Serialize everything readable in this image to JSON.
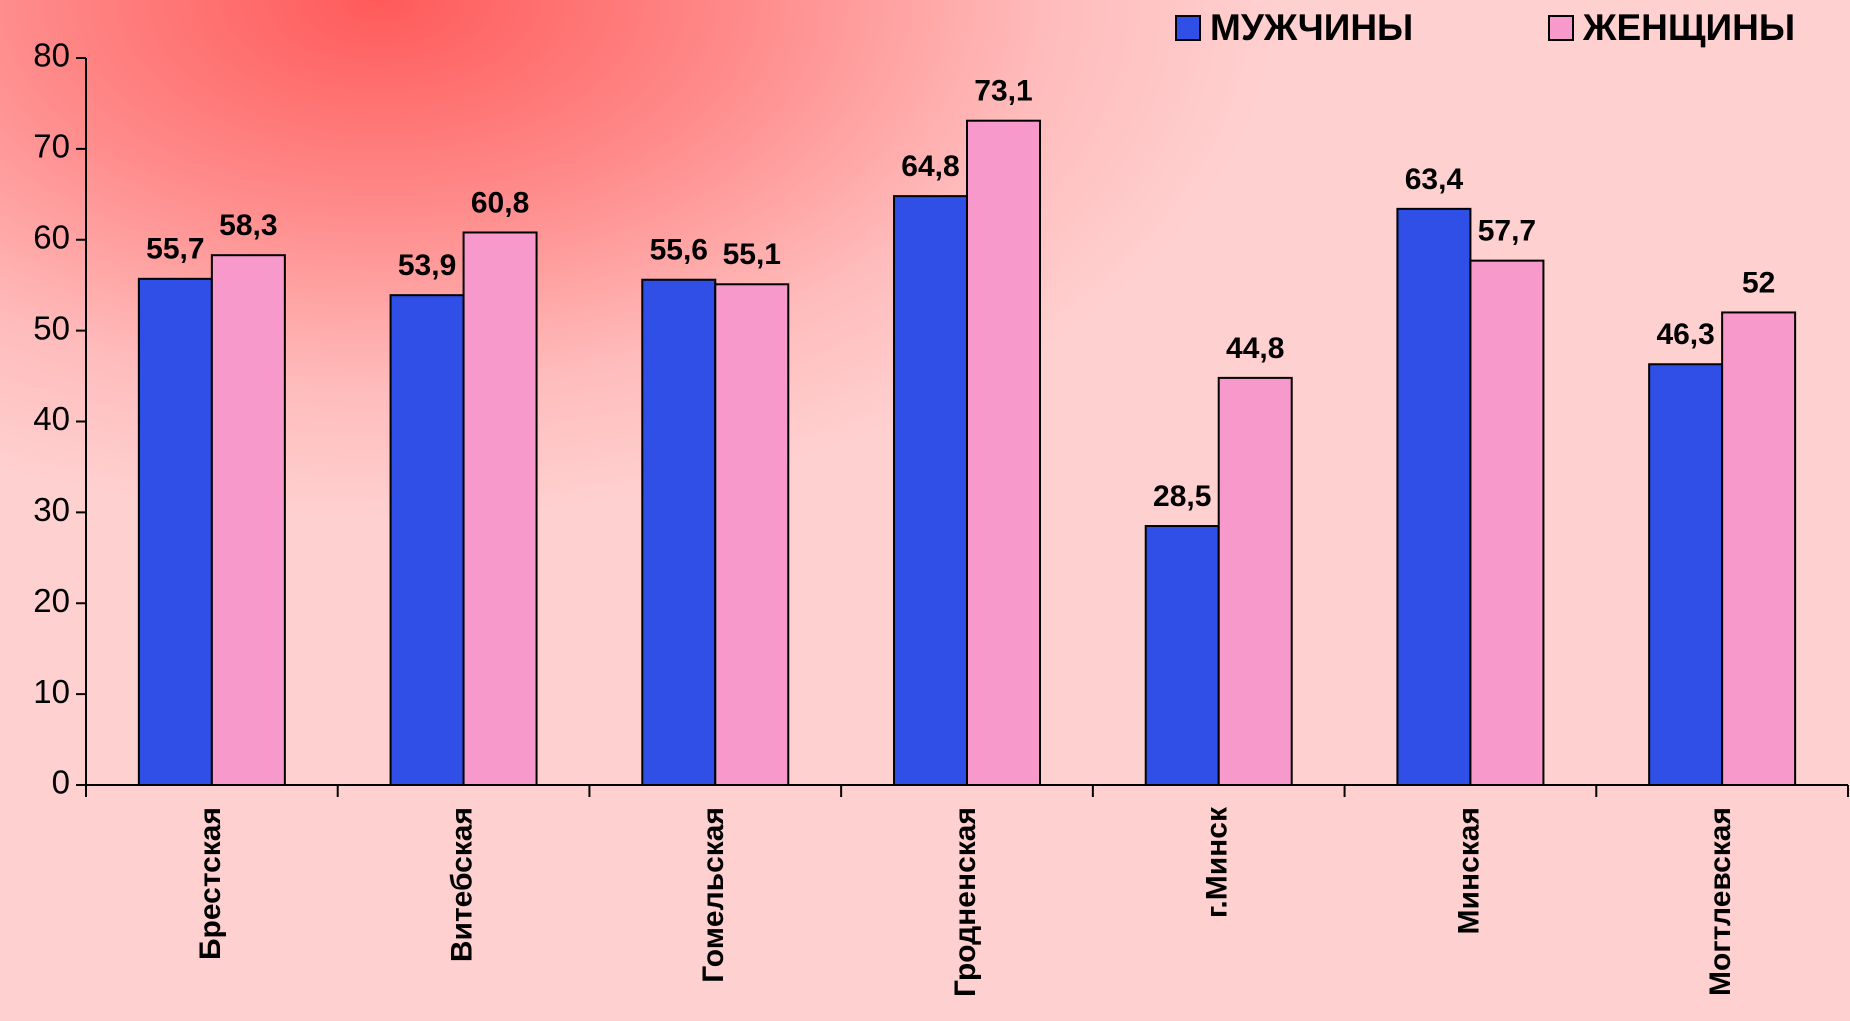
{
  "chart_data": {
    "type": "bar",
    "categories": [
      "Брестская",
      "Витебская",
      "Гомельская",
      "Гродненская",
      "г.Минск",
      "Минская",
      "Могтлевская"
    ],
    "series": [
      {
        "name": "МУЖЧИНЫ",
        "color": "#2f4fe6",
        "values": [
          55.7,
          53.9,
          55.6,
          64.8,
          28.5,
          63.4,
          46.3
        ],
        "value_labels": [
          "55,7",
          "53,9",
          "55,6",
          "64,8",
          "28,5",
          "63,4",
          "46,3"
        ]
      },
      {
        "name": "ЖЕНЩИНЫ",
        "color": "#f79acb",
        "values": [
          58.3,
          60.8,
          55.1,
          73.1,
          44.8,
          57.7,
          52
        ],
        "value_labels": [
          "58,3",
          "60,8",
          "55,1",
          "73,1",
          "44,8",
          "57,7",
          "52"
        ]
      }
    ],
    "ylim": [
      0,
      80
    ],
    "yticks": [
      0,
      10,
      20,
      30,
      40,
      50,
      60,
      70,
      80
    ],
    "legend": "upper right"
  }
}
